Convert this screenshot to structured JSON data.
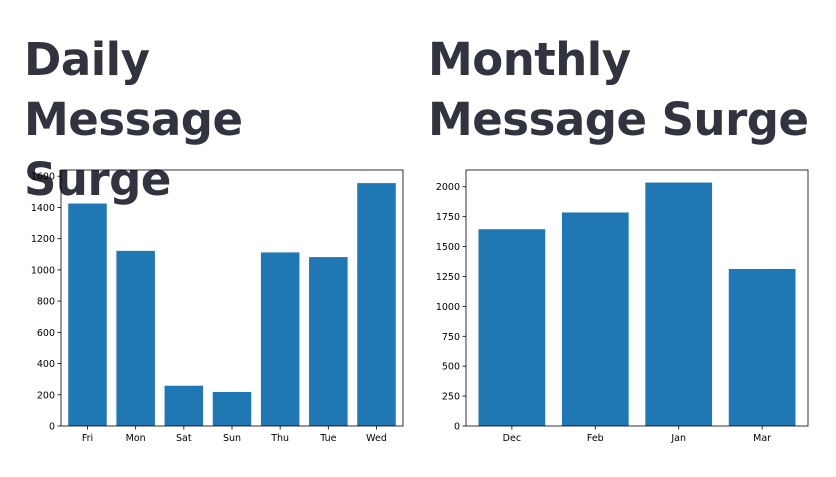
{
  "chart_data": [
    {
      "type": "bar",
      "title": "Daily Message Surge",
      "categories": [
        "Fri",
        "Mon",
        "Sat",
        "Sun",
        "Thu",
        "Tue",
        "Wed"
      ],
      "values": [
        1425,
        1122,
        258,
        218,
        1112,
        1082,
        1556
      ],
      "ylim": [
        0,
        1640
      ],
      "yticks": [
        0,
        200,
        400,
        600,
        800,
        1000,
        1200,
        1400,
        1600
      ],
      "xlabel": "",
      "ylabel": "",
      "color": "#1f77b4"
    },
    {
      "type": "bar",
      "title": "Monthly Message Surge",
      "categories": [
        "Dec",
        "Feb",
        "Jan",
        "Mar"
      ],
      "values": [
        1645,
        1785,
        2035,
        1313
      ],
      "ylim": [
        0,
        2140
      ],
      "yticks": [
        0,
        250,
        500,
        750,
        1000,
        1250,
        1500,
        1750,
        2000
      ],
      "xlabel": "",
      "ylabel": "",
      "color": "#1f77b4"
    }
  ]
}
